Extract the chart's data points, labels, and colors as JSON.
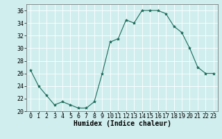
{
  "x": [
    0,
    1,
    2,
    3,
    4,
    5,
    6,
    7,
    8,
    9,
    10,
    11,
    12,
    13,
    14,
    15,
    16,
    17,
    18,
    19,
    20,
    21,
    22,
    23
  ],
  "y": [
    26.5,
    24,
    22.5,
    21,
    21.5,
    21,
    20.5,
    20.5,
    21.5,
    26,
    31,
    31.5,
    34.5,
    34,
    36,
    36,
    36,
    35.5,
    33.5,
    32.5,
    30,
    27,
    26,
    26
  ],
  "line_color": "#1a6b5a",
  "marker": "*",
  "marker_size": 3,
  "bg_color": "#d0eeee",
  "grid_color": "#ffffff",
  "xlabel": "Humidex (Indice chaleur)",
  "xlabel_fontsize": 7,
  "tick_fontsize": 6,
  "ylim": [
    20,
    37
  ],
  "yticks": [
    20,
    22,
    24,
    26,
    28,
    30,
    32,
    34,
    36
  ],
  "xticks": [
    0,
    1,
    2,
    3,
    4,
    5,
    6,
    7,
    8,
    9,
    10,
    11,
    12,
    13,
    14,
    15,
    16,
    17,
    18,
    19,
    20,
    21,
    22,
    23
  ],
  "xlim": [
    -0.5,
    23.5
  ]
}
